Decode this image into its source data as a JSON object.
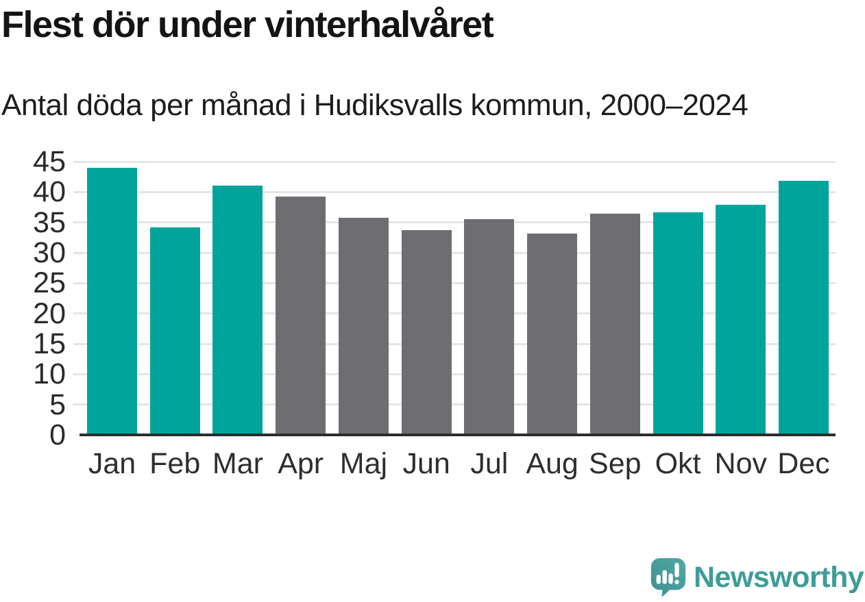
{
  "header": {
    "title": "Flest dör under vinterhalvåret",
    "subtitle": "Antal döda per månad i Hudiksvalls kommun, 2000–2024"
  },
  "chart_data": {
    "type": "bar",
    "title": "Flest dör under vinterhalvåret",
    "subtitle": "Antal döda per månad i Hudiksvalls kommun, 2000–2024",
    "categories": [
      "Jan",
      "Feb",
      "Mar",
      "Apr",
      "Maj",
      "Jun",
      "Jul",
      "Aug",
      "Sep",
      "Okt",
      "Nov",
      "Dec"
    ],
    "values": [
      44.0,
      34.2,
      41.0,
      39.2,
      35.8,
      33.7,
      35.5,
      33.2,
      36.4,
      36.6,
      37.9,
      41.8
    ],
    "highlighted_categories": [
      "Jan",
      "Feb",
      "Mar",
      "Okt",
      "Nov",
      "Dec"
    ],
    "xlabel": "",
    "ylabel": "",
    "ylim": [
      0,
      45
    ],
    "yticks": [
      0,
      5,
      10,
      15,
      20,
      25,
      30,
      35,
      40,
      45
    ],
    "grid": "horizontal",
    "legend": "none",
    "colors": {
      "highlight": "#00a49b",
      "default": "#6e6d72",
      "gridline": "#e5e5e7",
      "axis": "#2d2d2d"
    }
  },
  "branding": {
    "name": "Newsworthy",
    "icon": "newsworthy-logo",
    "text_color": "#3f9c98",
    "icon_color_top": "#50a8a4",
    "icon_color_bottom": "#3e908e"
  }
}
